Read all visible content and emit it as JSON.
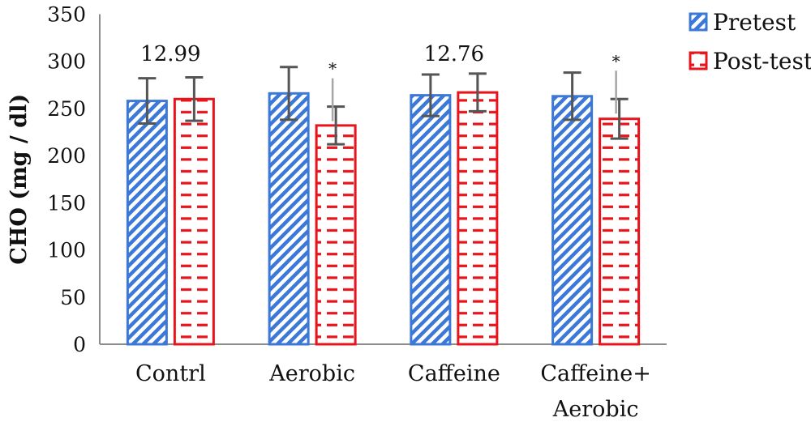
{
  "chart_data": {
    "type": "bar",
    "ylabel": "CHO (mg / dl)",
    "ylim": [
      0,
      350
    ],
    "yticks": [
      0,
      50,
      100,
      150,
      200,
      250,
      300,
      350
    ],
    "categories": [
      [
        "Contrl"
      ],
      [
        "Aerobic"
      ],
      [
        "Caffeine"
      ],
      [
        "Caffeine+",
        "Aerobic"
      ]
    ],
    "series": [
      {
        "name": "Pretest",
        "values": [
          258,
          266,
          264,
          263
        ],
        "errors": [
          24,
          28,
          22,
          25
        ],
        "color": "#3b78d8"
      },
      {
        "name": "Post-test",
        "values": [
          260,
          232,
          267,
          239
        ],
        "errors": [
          23,
          20,
          20,
          21
        ],
        "color": "#e8141c"
      }
    ],
    "group_annotations": [
      "12.99",
      "",
      "12.76",
      ""
    ],
    "significance_markers": [
      "",
      "*",
      "",
      "*"
    ],
    "legend_position": "top-right",
    "grid": false
  }
}
